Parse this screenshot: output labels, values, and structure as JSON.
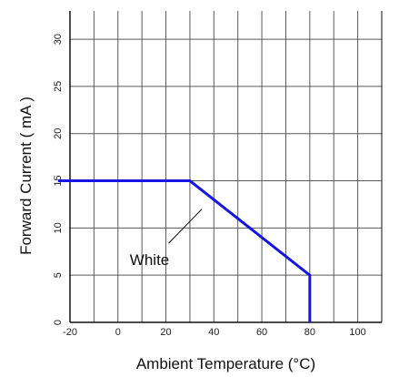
{
  "colors": {
    "series": "#1414e6",
    "grid": "#5a5a5a",
    "frame": "#111111",
    "text": "#111111",
    "background": "#ffffff"
  },
  "chart_data": {
    "type": "line",
    "title": "",
    "xlabel": "Ambient Temperature (°C)",
    "ylabel": "Forward Current ( mA )",
    "xlim": [
      -20,
      110
    ],
    "ylim": [
      0,
      33
    ],
    "grid": true,
    "legend": "none",
    "x_ticks": [
      -20,
      0,
      20,
      40,
      60,
      80,
      100
    ],
    "x_tick_labels": [
      "-20",
      "0",
      "20",
      "40",
      "60",
      "80",
      "100"
    ],
    "y_ticks": [
      0,
      5,
      10,
      15,
      20,
      25,
      30
    ],
    "y_tick_labels": [
      "0",
      "5",
      "10",
      "15",
      "20",
      "25",
      "30"
    ],
    "series": [
      {
        "x": [
          -25,
          30,
          80,
          80
        ],
        "y": [
          15,
          15,
          5,
          0
        ]
      }
    ],
    "annotations": [
      {
        "text": "White",
        "x": 20,
        "y": 8,
        "arrow_to_x": 35,
        "arrow_to_y": 12
      }
    ]
  }
}
